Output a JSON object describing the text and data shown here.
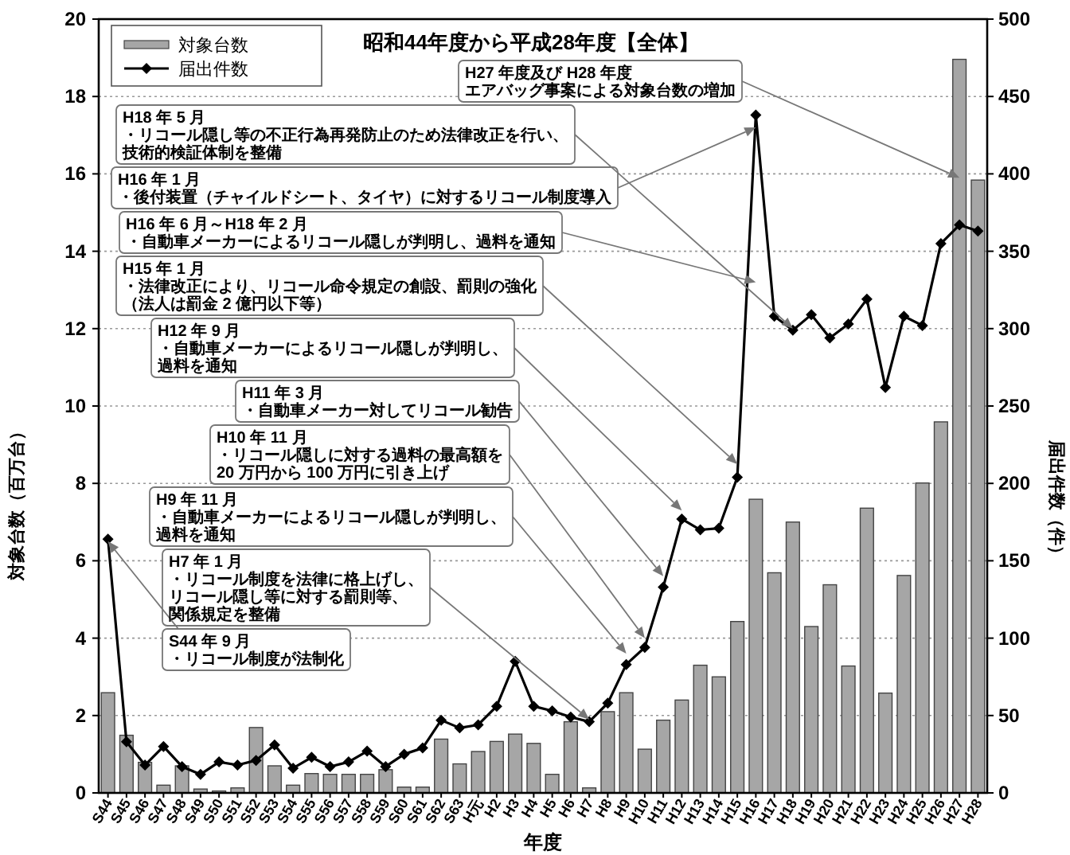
{
  "chart_data": {
    "type": "bar",
    "title": "昭和44年度から平成28年度【全体】",
    "xlabel": "年度",
    "ylabel": "対象台数（百万台）",
    "y2label": "届出件数（件）",
    "categories": [
      "S44",
      "S45",
      "S46",
      "S47",
      "S48",
      "S49",
      "S50",
      "S51",
      "S52",
      "S53",
      "S54",
      "S55",
      "S56",
      "S57",
      "S58",
      "S59",
      "S60",
      "S61",
      "S62",
      "S63",
      "H元",
      "H2",
      "H3",
      "H4",
      "H5",
      "H6",
      "H7",
      "H8",
      "H9",
      "H10",
      "H11",
      "H12",
      "H13",
      "H14",
      "H15",
      "H16",
      "H17",
      "H18",
      "H19",
      "H20",
      "H21",
      "H22",
      "H23",
      "H24",
      "H25",
      "H26",
      "H27",
      "H28"
    ],
    "series": [
      {
        "name": "対象台数",
        "color": "#a6a6a6",
        "values": [
          2.59,
          1.49,
          0.79,
          0.2,
          0.7,
          0.1,
          0.05,
          0.13,
          1.69,
          0.7,
          0.2,
          0.5,
          0.48,
          0.48,
          0.48,
          0.6,
          0.15,
          0.15,
          1.39,
          0.75,
          1.07,
          1.33,
          1.52,
          1.28,
          0.48,
          1.84,
          0.13,
          2.1,
          2.59,
          1.13,
          1.88,
          2.4,
          3.3,
          3.0,
          4.43,
          7.59,
          5.69,
          7.0,
          4.3,
          5.38,
          3.28,
          7.36,
          2.58,
          5.62,
          8.01,
          9.59,
          18.96,
          15.84
        ]
      },
      {
        "name": "届出件数",
        "type": "line",
        "axis": "y2",
        "color": "#000000",
        "values": [
          164,
          33,
          18,
          30,
          17,
          12,
          20,
          18,
          21,
          31,
          16,
          23,
          17,
          20,
          27,
          17,
          25,
          29,
          47,
          42,
          44,
          56,
          85,
          56,
          53,
          49,
          46,
          58,
          83,
          94,
          133,
          177,
          170,
          171,
          204,
          438,
          308,
          299,
          309,
          294,
          303,
          319,
          262,
          308,
          302,
          355,
          367,
          363
        ]
      }
    ],
    "ylim": [
      0,
      20
    ],
    "yticks": [
      0,
      2,
      4,
      6,
      8,
      10,
      12,
      14,
      16,
      18,
      20
    ],
    "y2lim": [
      0,
      500
    ],
    "y2ticks": [
      0,
      50,
      100,
      150,
      200,
      250,
      300,
      350,
      400,
      450,
      500
    ],
    "grid": "y",
    "legend": "top left",
    "marker": "diamond",
    "annotations": [
      "H27 年度及び H28 年度",
      {
        "text": "エアバッグ事案による対象台数の増加",
        "x": "H27",
        "y": 15.9
      },
      {
        "text": "H18 年 5 月・リコール隠し等の不正行為再発防止のため法律改正を行い、技術的検証体制を整備",
        "x": "H18",
        "y": 12.0
      },
      {
        "text": "H16 年 1 月・後付装置（チャイルドシート、タイヤ）に対するリコール制度導入",
        "x": "H16",
        "y": 17.2
      },
      {
        "text": "H16 年 6 月～H18 年 2 月・自動車メーカーによるリコール隠しが判明し、過料を通知",
        "x": "H16",
        "y": 13.2
      },
      {
        "text": "H15 年 1 月・法律改正により、リコール命令規定の創設、罰則の強化（法人は罰金 2 億円以下等）",
        "x": "H15",
        "y": 8.5
      },
      {
        "text": "H12 年 9 月・自動車メーカーによるリコール隠しが判明し、過料を通知",
        "x": "H12",
        "y": 7.3
      },
      {
        "text": "H11 年 3 月・自動車メーカー対してリコール勧告",
        "x": "H11",
        "y": 5.6
      },
      {
        "text": "H10 年 11 月・リコール隠しに対する過料の最高額を20 万円から 100 万円に引き上げ",
        "x": "H10",
        "y": 4.0
      },
      {
        "text": "H9 年 11 月・自動車メーカーによるリコール隠しが判明し、過料を通知",
        "x": "H9",
        "y": 3.6
      },
      {
        "text": "H7 年 1 月・リコール制度を法律に格上げし、リコール隠し等に対する罰則等、関係規定を整備",
        "x": "H7",
        "y": 1.9
      },
      {
        "text": "S44 年 9 月・リコール制度が法制化",
        "x": "S44",
        "y": 6.5
      }
    ]
  }
}
